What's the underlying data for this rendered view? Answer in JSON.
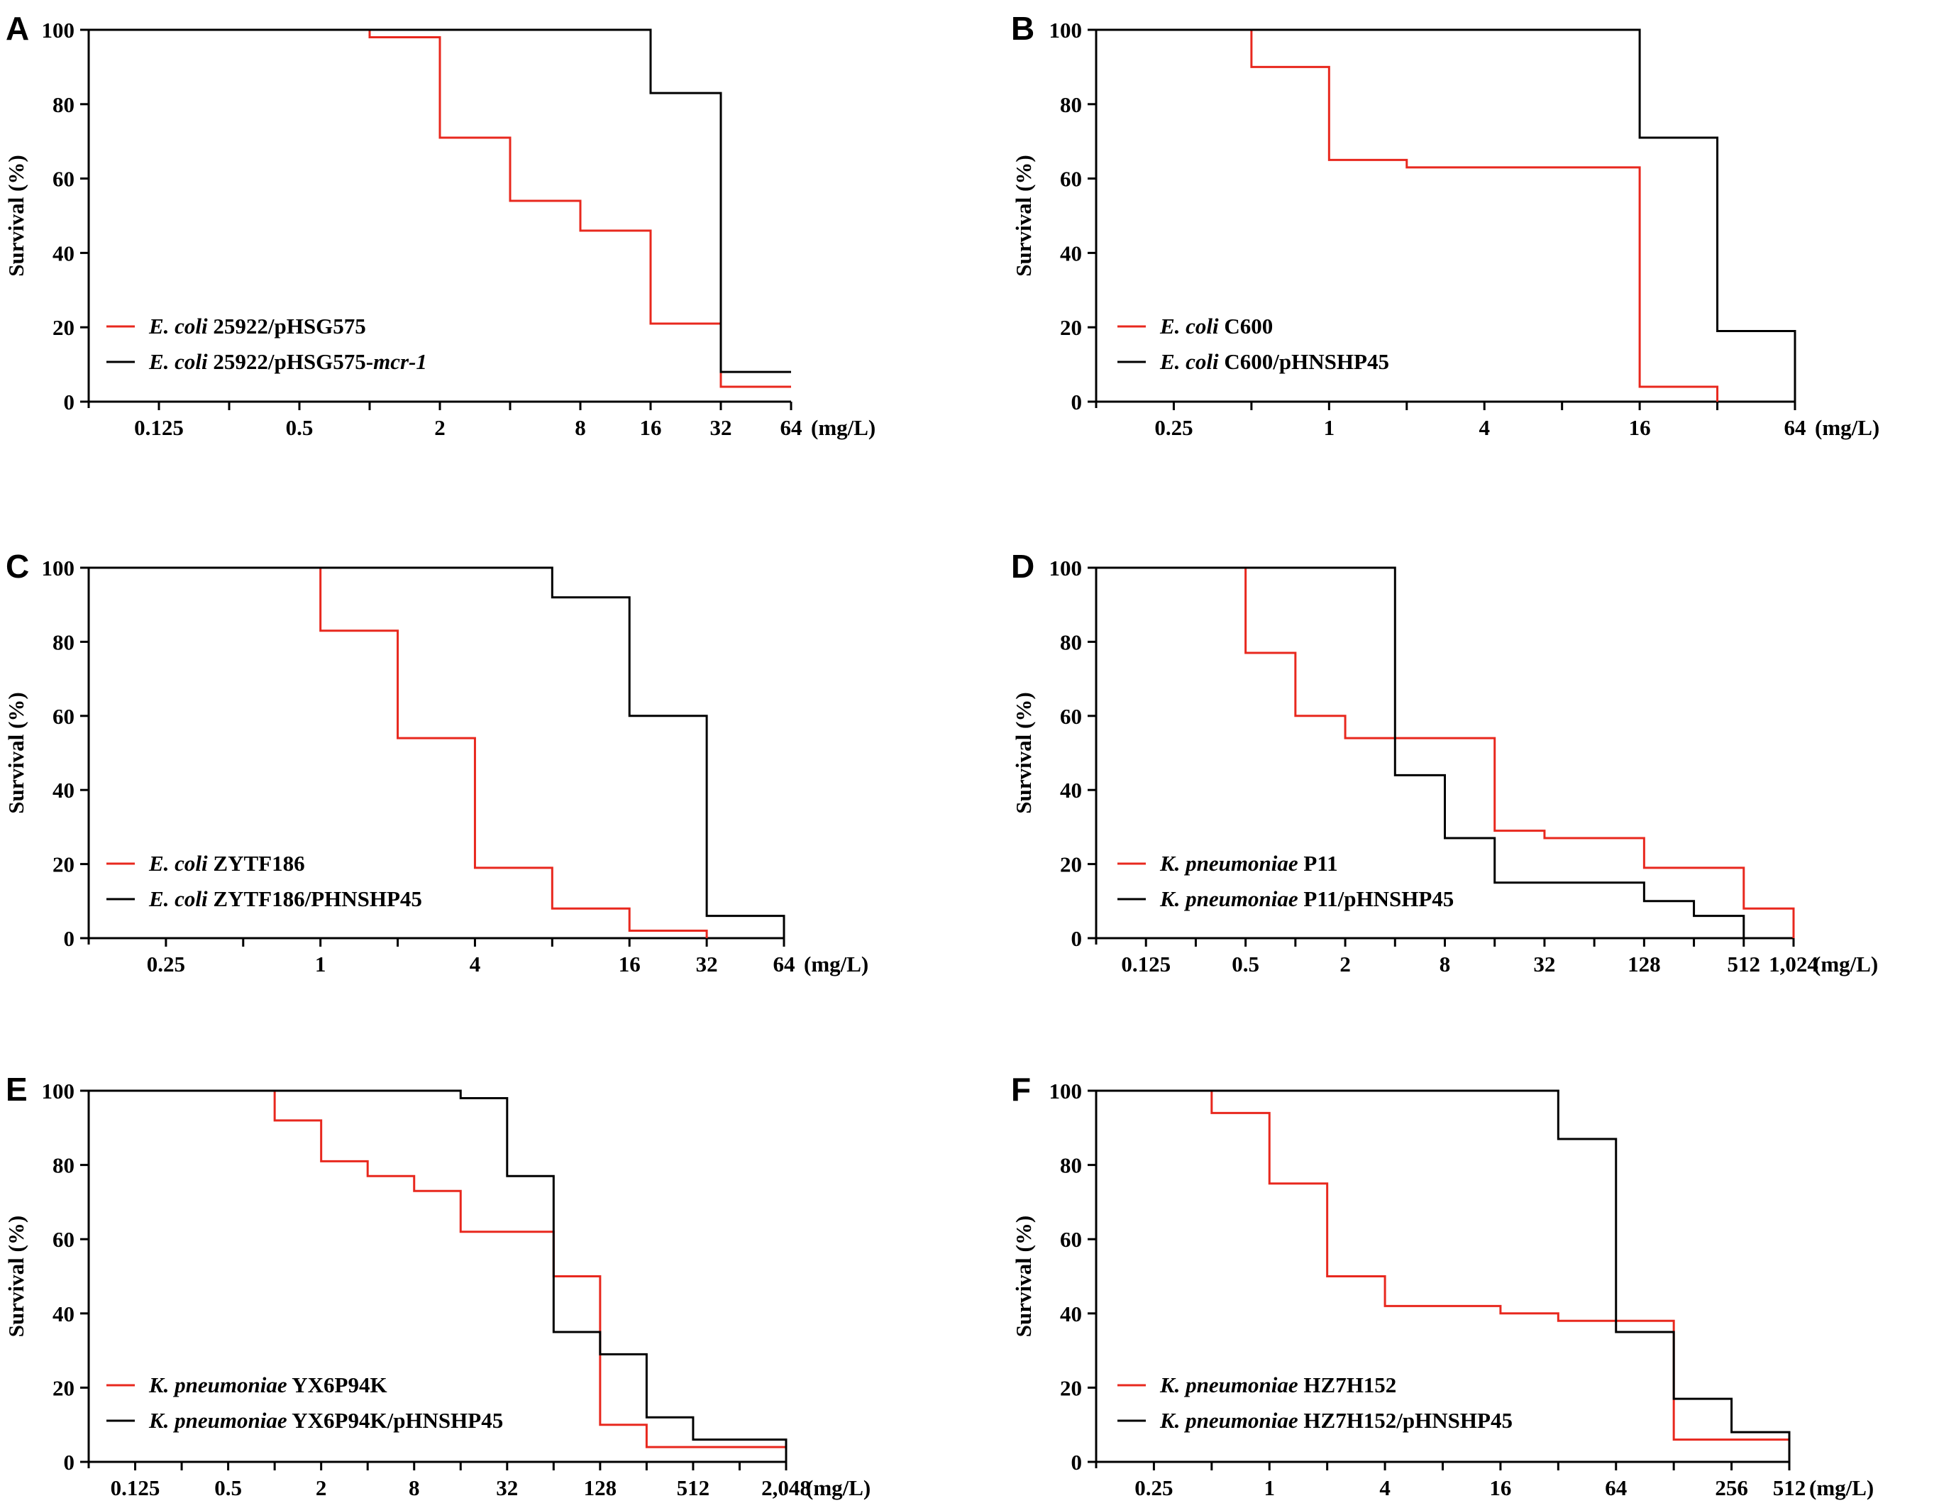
{
  "chart_data": [
    {
      "panel": "A",
      "type": "line",
      "step": true,
      "ylabel": "Survival (%)",
      "unit": "(mg/L)",
      "xscale": "log2",
      "xlim": [
        0.0625,
        64
      ],
      "ylim": [
        0,
        100
      ],
      "yticks": [
        0,
        20,
        40,
        60,
        80,
        100
      ],
      "xticks": [
        {
          "v": 0.125,
          "label": "0.125"
        },
        {
          "v": 0.5,
          "label": "0.5"
        },
        {
          "v": 2,
          "label": "2"
        },
        {
          "v": 8,
          "label": "8"
        },
        {
          "v": 16,
          "label": "16"
        },
        {
          "v": 32,
          "label": "32"
        },
        {
          "v": 64,
          "label": "64"
        }
      ],
      "xminor": [
        0.25,
        1,
        4
      ],
      "series": [
        {
          "name": "25922/pHSG575",
          "italic_prefix": "E. coli",
          "italic_suffix": "",
          "color": "#e8281e",
          "points": [
            [
              0.0625,
              100
            ],
            [
              1,
              98
            ],
            [
              2,
              71
            ],
            [
              4,
              54
            ],
            [
              8,
              46
            ],
            [
              16,
              21
            ],
            [
              32,
              4
            ],
            [
              64,
              4
            ]
          ]
        },
        {
          "name": "25922/pHSG575-",
          "italic_prefix": "E. coli",
          "italic_suffix": "mcr-1",
          "color": "#000000",
          "points": [
            [
              0.0625,
              100
            ],
            [
              16,
              83
            ],
            [
              32,
              8
            ],
            [
              64,
              8
            ]
          ]
        }
      ]
    },
    {
      "panel": "B",
      "type": "line",
      "step": true,
      "ylabel": "Survival (%)",
      "unit": "(mg/L)",
      "xscale": "log2",
      "xlim": [
        0.125,
        64
      ],
      "ylim": [
        0,
        100
      ],
      "yticks": [
        0,
        20,
        40,
        60,
        80,
        100
      ],
      "xticks": [
        {
          "v": 0.25,
          "label": "0.25"
        },
        {
          "v": 1,
          "label": "1"
        },
        {
          "v": 4,
          "label": "4"
        },
        {
          "v": 16,
          "label": "16"
        },
        {
          "v": 64,
          "label": "64"
        }
      ],
      "xminor": [
        0.5,
        2,
        8,
        32
      ],
      "series": [
        {
          "name": "C600",
          "italic_prefix": "E. coli",
          "italic_suffix": "",
          "color": "#e8281e",
          "points": [
            [
              0.125,
              100
            ],
            [
              0.5,
              90
            ],
            [
              1,
              65
            ],
            [
              2,
              63
            ],
            [
              16,
              4
            ],
            [
              32,
              0
            ]
          ]
        },
        {
          "name": "C600/pHNSHP45",
          "italic_prefix": "E. coli",
          "italic_suffix": "",
          "color": "#000000",
          "points": [
            [
              0.125,
              100
            ],
            [
              16,
              71
            ],
            [
              32,
              19
            ],
            [
              64,
              0
            ]
          ]
        }
      ]
    },
    {
      "panel": "C",
      "type": "line",
      "step": true,
      "ylabel": "Survival (%)",
      "unit": "(mg/L)",
      "xscale": "log2",
      "xlim": [
        0.125,
        64
      ],
      "ylim": [
        0,
        100
      ],
      "yticks": [
        0,
        20,
        40,
        60,
        80,
        100
      ],
      "xticks": [
        {
          "v": 0.25,
          "label": "0.25"
        },
        {
          "v": 1,
          "label": "1"
        },
        {
          "v": 4,
          "label": "4"
        },
        {
          "v": 16,
          "label": "16"
        },
        {
          "v": 32,
          "label": "32"
        },
        {
          "v": 64,
          "label": "64"
        }
      ],
      "xminor": [
        0.5,
        2,
        8
      ],
      "series": [
        {
          "name": "ZYTF186",
          "italic_prefix": "E. coli",
          "italic_suffix": "",
          "color": "#e8281e",
          "points": [
            [
              0.125,
              100
            ],
            [
              1,
              83
            ],
            [
              2,
              54
            ],
            [
              4,
              19
            ],
            [
              8,
              8
            ],
            [
              16,
              2
            ],
            [
              32,
              0
            ]
          ]
        },
        {
          "name": "ZYTF186/PHNSHP45",
          "italic_prefix": "E. coli",
          "italic_suffix": "",
          "color": "#000000",
          "points": [
            [
              0.125,
              100
            ],
            [
              8,
              92
            ],
            [
              16,
              60
            ],
            [
              32,
              6
            ],
            [
              64,
              0
            ]
          ]
        }
      ]
    },
    {
      "panel": "D",
      "type": "line",
      "step": true,
      "ylabel": "Survival (%)",
      "unit": "(mg/L)",
      "xscale": "log2",
      "xlim": [
        0.0625,
        1024
      ],
      "ylim": [
        0,
        100
      ],
      "yticks": [
        0,
        20,
        40,
        60,
        80,
        100
      ],
      "xticks": [
        {
          "v": 0.125,
          "label": "0.125"
        },
        {
          "v": 0.5,
          "label": "0.5"
        },
        {
          "v": 2,
          "label": "2"
        },
        {
          "v": 8,
          "label": "8"
        },
        {
          "v": 32,
          "label": "32"
        },
        {
          "v": 128,
          "label": "128"
        },
        {
          "v": 512,
          "label": "512"
        },
        {
          "v": 1024,
          "label": "1,024"
        }
      ],
      "xminor": [
        0.25,
        1,
        4,
        16,
        64,
        256
      ],
      "series": [
        {
          "name": "P11",
          "italic_prefix": "K. pneumoniae",
          "italic_suffix": "",
          "color": "#e8281e",
          "points": [
            [
              0.0625,
              100
            ],
            [
              0.5,
              77
            ],
            [
              1,
              60
            ],
            [
              2,
              54
            ],
            [
              16,
              29
            ],
            [
              32,
              27
            ],
            [
              128,
              19
            ],
            [
              512,
              8
            ],
            [
              1024,
              0
            ]
          ]
        },
        {
          "name": "P11/pHNSHP45",
          "italic_prefix": "K. pneumoniae",
          "italic_suffix": "",
          "color": "#000000",
          "points": [
            [
              0.0625,
              100
            ],
            [
              4,
              44
            ],
            [
              8,
              27
            ],
            [
              16,
              15
            ],
            [
              128,
              10
            ],
            [
              256,
              6
            ],
            [
              512,
              0
            ]
          ]
        }
      ]
    },
    {
      "panel": "E",
      "type": "line",
      "step": true,
      "ylabel": "Survival (%)",
      "unit": "(mg/L)",
      "xscale": "log2",
      "xlim": [
        0.0625,
        2048
      ],
      "ylim": [
        0,
        100
      ],
      "yticks": [
        0,
        20,
        40,
        60,
        80,
        100
      ],
      "xticks": [
        {
          "v": 0.125,
          "label": "0.125"
        },
        {
          "v": 0.5,
          "label": "0.5"
        },
        {
          "v": 2,
          "label": "2"
        },
        {
          "v": 8,
          "label": "8"
        },
        {
          "v": 32,
          "label": "32"
        },
        {
          "v": 128,
          "label": "128"
        },
        {
          "v": 512,
          "label": "512"
        },
        {
          "v": 2048,
          "label": "2,048"
        }
      ],
      "xminor": [
        0.25,
        1,
        4,
        16,
        64,
        256,
        1024
      ],
      "series": [
        {
          "name": "YX6P94K",
          "italic_prefix": "K. pneumoniae",
          "italic_suffix": "",
          "color": "#e8281e",
          "points": [
            [
              0.0625,
              100
            ],
            [
              1,
              92
            ],
            [
              2,
              81
            ],
            [
              4,
              77
            ],
            [
              8,
              73
            ],
            [
              16,
              62
            ],
            [
              64,
              50
            ],
            [
              128,
              10
            ],
            [
              256,
              4
            ],
            [
              2048,
              0
            ]
          ]
        },
        {
          "name": "YX6P94K/pHNSHP45",
          "italic_prefix": "K. pneumoniae",
          "italic_suffix": "",
          "color": "#000000",
          "points": [
            [
              0.0625,
              100
            ],
            [
              16,
              98
            ],
            [
              32,
              77
            ],
            [
              64,
              35
            ],
            [
              128,
              29
            ],
            [
              256,
              12
            ],
            [
              512,
              6
            ],
            [
              2048,
              0
            ]
          ]
        }
      ]
    },
    {
      "panel": "F",
      "type": "line",
      "step": true,
      "ylabel": "Survival (%)",
      "unit": "(mg/L)",
      "xscale": "log2",
      "xlim": [
        0.125,
        512
      ],
      "ylim": [
        0,
        100
      ],
      "yticks": [
        0,
        20,
        40,
        60,
        80,
        100
      ],
      "xticks": [
        {
          "v": 0.25,
          "label": "0.25"
        },
        {
          "v": 1,
          "label": "1"
        },
        {
          "v": 4,
          "label": "4"
        },
        {
          "v": 16,
          "label": "16"
        },
        {
          "v": 64,
          "label": "64"
        },
        {
          "v": 256,
          "label": "256"
        },
        {
          "v": 512,
          "label": "512"
        }
      ],
      "xminor": [
        0.5,
        2,
        8,
        32,
        128
      ],
      "series": [
        {
          "name": "HZ7H152",
          "italic_prefix": "K. pneumoniae",
          "italic_suffix": "",
          "color": "#e8281e",
          "points": [
            [
              0.125,
              100
            ],
            [
              0.5,
              94
            ],
            [
              1,
              75
            ],
            [
              2,
              50
            ],
            [
              4,
              42
            ],
            [
              16,
              40
            ],
            [
              32,
              38
            ],
            [
              128,
              6
            ],
            [
              512,
              0
            ]
          ]
        },
        {
          "name": "HZ7H152/pHNSHP45",
          "italic_prefix": "K. pneumoniae",
          "italic_suffix": "",
          "color": "#000000",
          "points": [
            [
              0.125,
              100
            ],
            [
              32,
              87
            ],
            [
              64,
              35
            ],
            [
              128,
              17
            ],
            [
              256,
              8
            ],
            [
              512,
              0
            ]
          ]
        }
      ]
    }
  ]
}
